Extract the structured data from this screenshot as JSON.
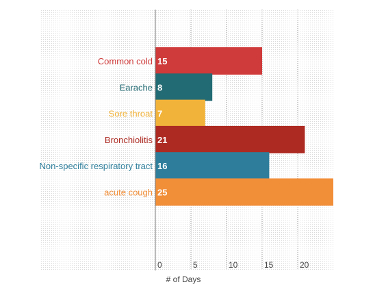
{
  "chart_data": {
    "type": "bar",
    "orientation": "horizontal",
    "categories": [
      "Common cold",
      "Earache",
      "Sore throat",
      "Bronchiolitis",
      "Non-specific respiratory tract",
      "acute cough"
    ],
    "values": [
      15,
      8,
      7,
      21,
      16,
      25
    ],
    "colors": [
      "#cf3a3a",
      "#236b74",
      "#f2b33a",
      "#ad2a22",
      "#2e7e9b",
      "#f18e38"
    ],
    "xlabel": "# of Days",
    "ylabel": "",
    "title": "",
    "xlim": [
      0,
      25
    ],
    "xticks": [
      0,
      5,
      10,
      15,
      20
    ],
    "grid": true,
    "legend": "none"
  }
}
